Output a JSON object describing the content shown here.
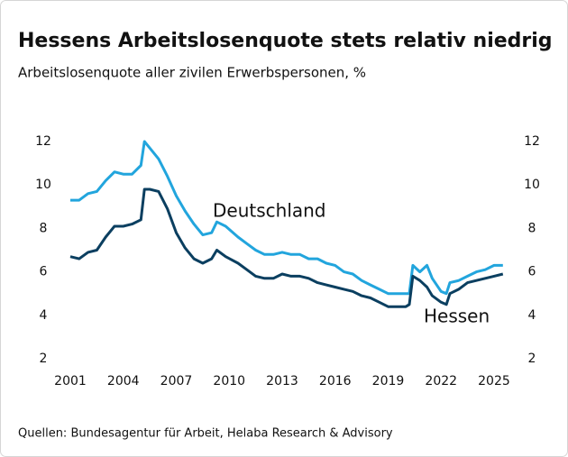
{
  "chart_data": {
    "type": "line",
    "title": "Hessens Arbeitslosenquote stets relativ niedrig",
    "subtitle": "Arbeitslosenquote aller zivilen Erwerbspersonen, %",
    "source": "Quellen: Bundesagentur für Arbeit, Helaba Research & Advisory",
    "x": [
      2001,
      2001.5,
      2002,
      2002.5,
      2003,
      2003.5,
      2004,
      2004.5,
      2005,
      2005.2,
      2005.5,
      2006,
      2006.5,
      2007,
      2007.5,
      2008,
      2008.5,
      2009,
      2009.3,
      2009.8,
      2010.5,
      2011,
      2011.5,
      2012,
      2012.5,
      2013,
      2013.5,
      2014,
      2014.5,
      2015,
      2015.5,
      2016,
      2016.5,
      2017,
      2017.5,
      2018,
      2018.5,
      2019,
      2019.5,
      2020,
      2020.2,
      2020.4,
      2020.8,
      2021.2,
      2021.5,
      2022,
      2022.3,
      2022.5,
      2023,
      2023.5,
      2024,
      2024.5,
      2025,
      2025.5
    ],
    "series": [
      {
        "name": "Deutschland",
        "color": "#22a5dd",
        "values": [
          9.3,
          9.3,
          9.6,
          9.7,
          10.2,
          10.6,
          10.5,
          10.5,
          10.9,
          12.0,
          11.7,
          11.2,
          10.4,
          9.5,
          8.8,
          8.2,
          7.7,
          7.8,
          8.3,
          8.1,
          7.6,
          7.3,
          7.0,
          6.8,
          6.8,
          6.9,
          6.8,
          6.8,
          6.6,
          6.6,
          6.4,
          6.3,
          6.0,
          5.9,
          5.6,
          5.4,
          5.2,
          5.0,
          5.0,
          5.0,
          5.0,
          6.3,
          6.0,
          6.3,
          5.7,
          5.1,
          5.0,
          5.5,
          5.6,
          5.8,
          6.0,
          6.1,
          6.3,
          6.3
        ]
      },
      {
        "name": "Hessen",
        "color": "#0b3f60",
        "values": [
          6.7,
          6.6,
          6.9,
          7.0,
          7.6,
          8.1,
          8.1,
          8.2,
          8.4,
          9.8,
          9.8,
          9.7,
          8.9,
          7.8,
          7.1,
          6.6,
          6.4,
          6.6,
          7.0,
          6.7,
          6.4,
          6.1,
          5.8,
          5.7,
          5.7,
          5.9,
          5.8,
          5.8,
          5.7,
          5.5,
          5.4,
          5.3,
          5.2,
          5.1,
          4.9,
          4.8,
          4.6,
          4.4,
          4.4,
          4.4,
          4.5,
          5.8,
          5.6,
          5.3,
          4.9,
          4.6,
          4.5,
          5.0,
          5.2,
          5.5,
          5.6,
          5.7,
          5.8,
          5.9
        ]
      }
    ],
    "xlim": [
      2001,
      2025.9
    ],
    "xticks": [
      2001,
      2004,
      2007,
      2010,
      2013,
      2016,
      2019,
      2022,
      2025
    ],
    "ylim": [
      2,
      12
    ],
    "yticks": [
      2,
      4,
      6,
      8,
      10,
      12
    ],
    "y2lim": [
      2,
      12
    ],
    "y2ticks": [
      2,
      4,
      6,
      8,
      10,
      12
    ]
  }
}
